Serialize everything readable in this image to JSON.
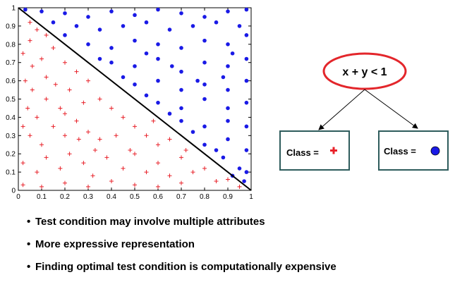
{
  "chart_data": {
    "type": "scatter",
    "title": "",
    "xlabel": "",
    "ylabel": "",
    "xlim": [
      0,
      1
    ],
    "ylim": [
      0,
      1
    ],
    "x_ticks": [
      "0",
      "0.1",
      "0.2",
      "0.3",
      "0.4",
      "0.5",
      "0.6",
      "0.7",
      "0.8",
      "0.9",
      "1"
    ],
    "y_ticks": [
      "0",
      "0.1",
      "0.2",
      "0.3",
      "0.4",
      "0.5",
      "0.6",
      "0.7",
      "0.8",
      "0.9",
      "1"
    ],
    "decision_boundary": {
      "equation": "x + y = 1",
      "color": "#000000"
    },
    "series": [
      {
        "marker": "plus",
        "color": "#e8222a",
        "points": [
          [
            0.02,
            0.75
          ],
          [
            0.05,
            0.82
          ],
          [
            0.08,
            0.88
          ],
          [
            0.1,
            0.72
          ],
          [
            0.03,
            0.6
          ],
          [
            0.06,
            0.55
          ],
          [
            0.12,
            0.62
          ],
          [
            0.15,
            0.78
          ],
          [
            0.2,
            0.7
          ],
          [
            0.25,
            0.65
          ],
          [
            0.3,
            0.6
          ],
          [
            0.04,
            0.45
          ],
          [
            0.08,
            0.4
          ],
          [
            0.12,
            0.5
          ],
          [
            0.18,
            0.45
          ],
          [
            0.22,
            0.55
          ],
          [
            0.28,
            0.48
          ],
          [
            0.35,
            0.5
          ],
          [
            0.4,
            0.45
          ],
          [
            0.45,
            0.4
          ],
          [
            0.05,
            0.3
          ],
          [
            0.1,
            0.25
          ],
          [
            0.15,
            0.35
          ],
          [
            0.2,
            0.3
          ],
          [
            0.25,
            0.38
          ],
          [
            0.3,
            0.32
          ],
          [
            0.35,
            0.28
          ],
          [
            0.42,
            0.3
          ],
          [
            0.5,
            0.35
          ],
          [
            0.55,
            0.3
          ],
          [
            0.6,
            0.25
          ],
          [
            0.02,
            0.15
          ],
          [
            0.08,
            0.1
          ],
          [
            0.12,
            0.18
          ],
          [
            0.18,
            0.12
          ],
          [
            0.22,
            0.2
          ],
          [
            0.28,
            0.15
          ],
          [
            0.32,
            0.08
          ],
          [
            0.38,
            0.18
          ],
          [
            0.45,
            0.12
          ],
          [
            0.5,
            0.2
          ],
          [
            0.55,
            0.1
          ],
          [
            0.6,
            0.15
          ],
          [
            0.65,
            0.08
          ],
          [
            0.7,
            0.18
          ],
          [
            0.75,
            0.1
          ],
          [
            0.8,
            0.12
          ],
          [
            0.85,
            0.05
          ],
          [
            0.9,
            0.06
          ],
          [
            0.95,
            0.02
          ],
          [
            0.02,
            0.03
          ],
          [
            0.1,
            0.02
          ],
          [
            0.2,
            0.04
          ],
          [
            0.3,
            0.02
          ],
          [
            0.4,
            0.05
          ],
          [
            0.5,
            0.03
          ],
          [
            0.6,
            0.02
          ],
          [
            0.7,
            0.04
          ],
          [
            0.05,
            0.92
          ],
          [
            0.12,
            0.85
          ],
          [
            0.2,
            0.42
          ],
          [
            0.33,
            0.22
          ],
          [
            0.48,
            0.22
          ],
          [
            0.58,
            0.38
          ],
          [
            0.65,
            0.28
          ],
          [
            0.72,
            0.22
          ],
          [
            0.02,
            0.35
          ],
          [
            0.06,
            0.68
          ],
          [
            0.16,
            0.58
          ],
          [
            0.26,
            0.28
          ]
        ]
      },
      {
        "marker": "circle",
        "color": "#1a1ae6",
        "points": [
          [
            0.03,
            0.99
          ],
          [
            0.1,
            0.98
          ],
          [
            0.2,
            0.97
          ],
          [
            0.3,
            0.95
          ],
          [
            0.4,
            0.98
          ],
          [
            0.5,
            0.96
          ],
          [
            0.6,
            0.99
          ],
          [
            0.7,
            0.97
          ],
          [
            0.8,
            0.95
          ],
          [
            0.9,
            0.98
          ],
          [
            0.98,
            0.99
          ],
          [
            0.15,
            0.92
          ],
          [
            0.25,
            0.9
          ],
          [
            0.35,
            0.88
          ],
          [
            0.45,
            0.9
          ],
          [
            0.55,
            0.92
          ],
          [
            0.65,
            0.88
          ],
          [
            0.75,
            0.9
          ],
          [
            0.85,
            0.92
          ],
          [
            0.95,
            0.9
          ],
          [
            0.3,
            0.8
          ],
          [
            0.4,
            0.78
          ],
          [
            0.5,
            0.82
          ],
          [
            0.6,
            0.8
          ],
          [
            0.7,
            0.78
          ],
          [
            0.8,
            0.82
          ],
          [
            0.9,
            0.8
          ],
          [
            0.98,
            0.85
          ],
          [
            0.4,
            0.7
          ],
          [
            0.5,
            0.68
          ],
          [
            0.6,
            0.72
          ],
          [
            0.7,
            0.65
          ],
          [
            0.8,
            0.7
          ],
          [
            0.9,
            0.68
          ],
          [
            0.98,
            0.72
          ],
          [
            0.5,
            0.58
          ],
          [
            0.6,
            0.6
          ],
          [
            0.7,
            0.55
          ],
          [
            0.8,
            0.58
          ],
          [
            0.9,
            0.55
          ],
          [
            0.98,
            0.6
          ],
          [
            0.6,
            0.48
          ],
          [
            0.7,
            0.45
          ],
          [
            0.8,
            0.5
          ],
          [
            0.9,
            0.45
          ],
          [
            0.98,
            0.48
          ],
          [
            0.7,
            0.38
          ],
          [
            0.8,
            0.35
          ],
          [
            0.9,
            0.38
          ],
          [
            0.98,
            0.35
          ],
          [
            0.8,
            0.25
          ],
          [
            0.9,
            0.28
          ],
          [
            0.98,
            0.22
          ],
          [
            0.88,
            0.18
          ],
          [
            0.95,
            0.12
          ],
          [
            0.98,
            0.1
          ],
          [
            0.92,
            0.08
          ],
          [
            0.97,
            0.05
          ],
          [
            0.45,
            0.62
          ],
          [
            0.55,
            0.52
          ],
          [
            0.65,
            0.42
          ],
          [
            0.75,
            0.32
          ],
          [
            0.85,
            0.22
          ],
          [
            0.55,
            0.75
          ],
          [
            0.66,
            0.68
          ],
          [
            0.77,
            0.6
          ],
          [
            0.88,
            0.62
          ],
          [
            0.92,
            0.75
          ],
          [
            0.2,
            0.85
          ],
          [
            0.35,
            0.72
          ]
        ]
      }
    ]
  },
  "tree": {
    "root_label": "x + y < 1",
    "left_leaf_label": "Class = ",
    "right_leaf_label": "Class = ",
    "root_border_color": "#e3262b",
    "leaf_border_color": "#2e5c5c",
    "plus_color": "#e8222a",
    "circle_color": "#1a1ae6"
  },
  "bullets": [
    "Test condition may involve multiple attributes",
    "More expressive representation",
    "Finding optimal test condition is computationally expensive"
  ]
}
